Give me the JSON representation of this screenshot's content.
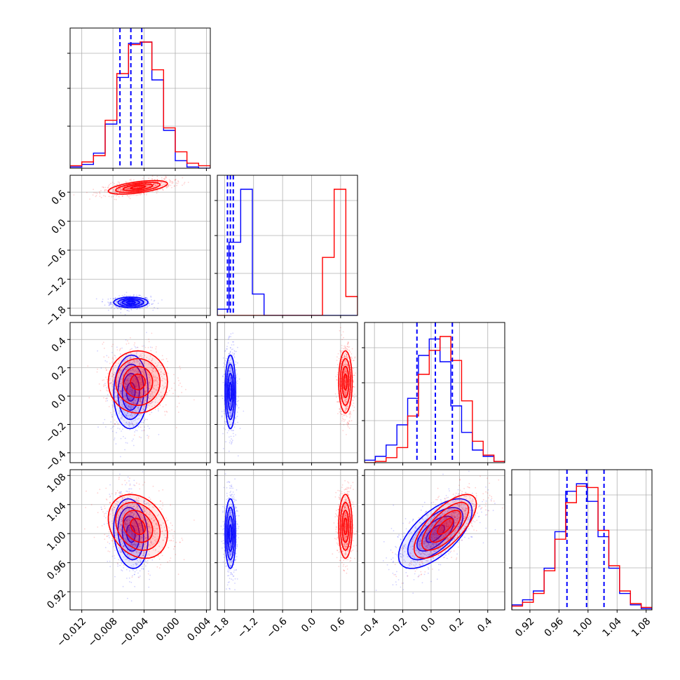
{
  "chart_data": {
    "type": "corner",
    "parameters": [
      {
        "range": [
          -0.0135,
          0.0045
        ],
        "ticks": [
          "-0.012",
          "-0.008",
          "-0.004",
          "0.000",
          "0.004"
        ],
        "tick_values": [
          -0.012,
          -0.008,
          -0.004,
          0.0,
          0.004
        ],
        "quantiles_blue": [
          -0.0071,
          -0.0057,
          -0.0043
        ]
      },
      {
        "range": [
          -1.95,
          0.95
        ],
        "ticks": [
          "-1.8",
          "-1.2",
          "-0.6",
          "0.0",
          "0.6"
        ],
        "tick_values": [
          -1.8,
          -1.2,
          -0.6,
          0.0,
          0.6
        ],
        "quantiles_blue": [
          -1.74,
          -1.68,
          -1.62
        ]
      },
      {
        "range": [
          -0.47,
          0.52
        ],
        "ticks": [
          "-0.4",
          "-0.2",
          "0.0",
          "0.2",
          "0.4"
        ],
        "tick_values": [
          -0.4,
          -0.2,
          0.0,
          0.2,
          0.4
        ],
        "quantiles_blue": [
          -0.1,
          0.03,
          0.15
        ]
      },
      {
        "range": [
          0.895,
          1.088
        ],
        "ticks": [
          "0.92",
          "0.96",
          "1.00",
          "1.04",
          "1.08"
        ],
        "tick_values": [
          0.92,
          0.96,
          1.0,
          1.04,
          1.08
        ],
        "quantiles_blue": [
          0.971,
          0.998,
          1.022
        ]
      }
    ],
    "series": [
      {
        "color": "#0000ff",
        "centers": [
          -0.0057,
          -1.68,
          0.03,
          1.0
        ],
        "sigmas": [
          0.0011,
          0.055,
          0.13,
          0.024
        ],
        "correlations": {
          "2-0": 0.05,
          "3-0": -0.15,
          "3-2": 0.65
        },
        "hist_counts": [
          [
            0.01,
            0.03,
            0.12,
            0.35,
            0.72,
            0.99,
            1.0,
            0.7,
            0.3,
            0.06,
            0.01,
            0.0
          ],
          [
            0.05,
            0.58,
            1.0,
            0.17,
            0.0,
            0.0,
            0.0,
            0.0,
            0.0,
            0.0,
            0.0,
            0.0
          ],
          [
            0.02,
            0.05,
            0.14,
            0.3,
            0.51,
            0.85,
            0.98,
            0.8,
            0.45,
            0.24,
            0.1,
            0.05,
            0.01
          ],
          [
            0.04,
            0.08,
            0.15,
            0.33,
            0.62,
            0.94,
            1.0,
            0.86,
            0.58,
            0.33,
            0.13,
            0.04,
            0.01
          ]
        ]
      },
      {
        "color": "#ff0000",
        "centers": [
          -0.0048,
          0.7,
          0.1,
          1.01
        ],
        "sigmas": [
          0.0019,
          0.07,
          0.11,
          0.022
        ],
        "correlations": {
          "1-0": 0.55,
          "2-0": 0.0,
          "3-0": -0.25,
          "3-2": 0.7
        },
        "hist_counts": [
          [
            0.02,
            0.05,
            0.1,
            0.38,
            0.75,
            0.98,
            1.0,
            0.78,
            0.32,
            0.13,
            0.04,
            0.02
          ],
          [
            0.0,
            0.0,
            0.0,
            0.0,
            0.0,
            0.0,
            0.0,
            0.0,
            0.0,
            0.46,
            1.0,
            0.15
          ],
          [
            0.0,
            0.01,
            0.04,
            0.12,
            0.37,
            0.7,
            0.89,
            1.0,
            0.81,
            0.49,
            0.17,
            0.06,
            0.01
          ],
          [
            0.03,
            0.06,
            0.13,
            0.31,
            0.56,
            0.85,
            0.98,
            0.97,
            0.63,
            0.35,
            0.15,
            0.05,
            0.02
          ]
        ]
      }
    ],
    "grid": true,
    "legend": "none"
  }
}
